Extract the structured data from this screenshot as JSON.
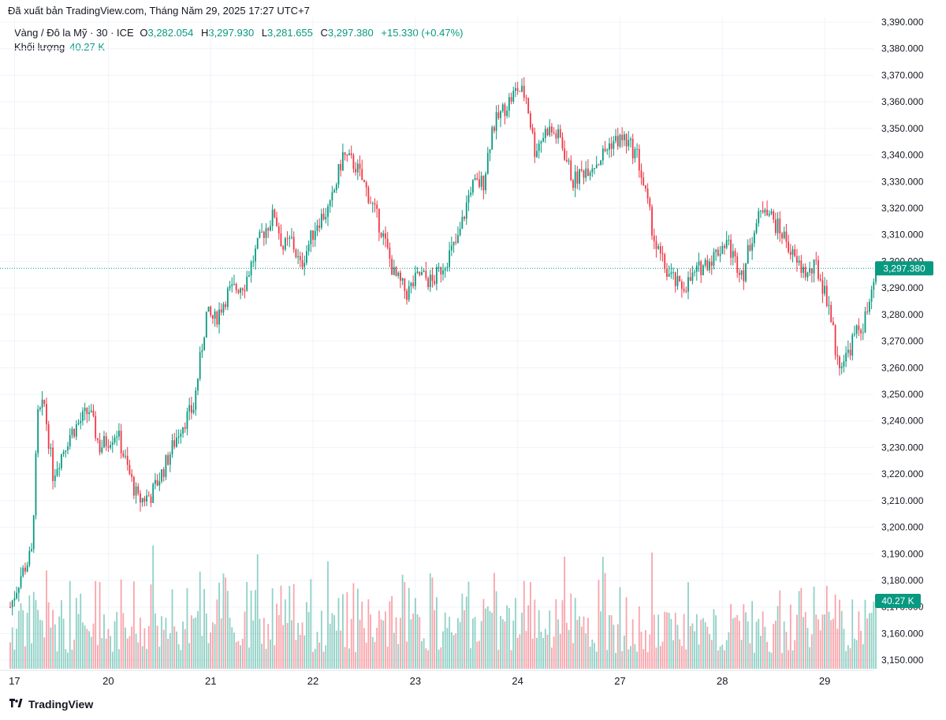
{
  "header": {
    "published": "Đã xuất bản TradingView.com, Tháng Năm 29, 2025 17:27 UTC+7"
  },
  "legend": {
    "symbol": "Vàng / Đô la Mỹ · 30 · ICE",
    "o_label": "O",
    "o_value": "3,282.054",
    "h_label": "H",
    "h_value": "3,297.930",
    "l_label": "L",
    "l_value": "3,281.655",
    "c_label": "C",
    "c_value": "3,297.380",
    "change": "+15.330 (+0.47%)",
    "volume_label": "Khối lượng",
    "volume_value": "40.27 K"
  },
  "footer": {
    "brand": "TradingView"
  },
  "colors": {
    "up": "#089981",
    "down": "#f23645",
    "grid": "#f0f3fa",
    "text": "#131722"
  },
  "chart_data": {
    "type": "candlestick",
    "y_axis": {
      "range": [
        3145,
        3390
      ],
      "ticks": [
        3150,
        3160,
        3170,
        3180,
        3190,
        3200,
        3210,
        3220,
        3230,
        3240,
        3250,
        3260,
        3270,
        3280,
        3290,
        3300,
        3310,
        3320,
        3330,
        3340,
        3350,
        3360,
        3370,
        3380,
        3390
      ],
      "tick_labels": [
        "3,150.000",
        "3,160.000",
        "3,170.000",
        "3,180.000",
        "3,190.000",
        "3,200.000",
        "3,210.000",
        "3,220.000",
        "3,230.000",
        "3,240.000",
        "3,250.000",
        "3,260.000",
        "3,270.000",
        "3,280.000",
        "3,290.000",
        "3,300.000",
        "3,310.000",
        "3,320.000",
        "3,330.000",
        "3,340.000",
        "3,350.000",
        "3,360.000",
        "3,370.000",
        "3,380.000",
        "3,390.000"
      ]
    },
    "x_axis": {
      "labels": [
        {
          "label": "17",
          "bar": 2
        },
        {
          "label": "20",
          "bar": 46
        },
        {
          "label": "21",
          "bar": 94
        },
        {
          "label": "22",
          "bar": 142
        },
        {
          "label": "23",
          "bar": 190
        },
        {
          "label": "24",
          "bar": 238
        },
        {
          "label": "27",
          "bar": 286
        },
        {
          "label": "28",
          "bar": 334
        },
        {
          "label": "29",
          "bar": 382
        }
      ],
      "bar_count": 400
    },
    "last_price": 3297.38,
    "last_price_label": "3,297.380",
    "last_volume_label": "40.27 K",
    "price_path": [
      [
        0,
        3170
      ],
      [
        5,
        3182
      ],
      [
        10,
        3190
      ],
      [
        13,
        3242
      ],
      [
        16,
        3246
      ],
      [
        20,
        3220
      ],
      [
        28,
        3235
      ],
      [
        37,
        3244
      ],
      [
        42,
        3230
      ],
      [
        50,
        3236
      ],
      [
        55,
        3222
      ],
      [
        60,
        3210
      ],
      [
        66,
        3212
      ],
      [
        72,
        3222
      ],
      [
        80,
        3238
      ],
      [
        86,
        3245
      ],
      [
        92,
        3280
      ],
      [
        96,
        3278
      ],
      [
        102,
        3288
      ],
      [
        110,
        3292
      ],
      [
        118,
        3310
      ],
      [
        124,
        3318
      ],
      [
        128,
        3305
      ],
      [
        132,
        3308
      ],
      [
        136,
        3298
      ],
      [
        144,
        3315
      ],
      [
        150,
        3320
      ],
      [
        156,
        3340
      ],
      [
        162,
        3336
      ],
      [
        168,
        3325
      ],
      [
        174,
        3312
      ],
      [
        180,
        3295
      ],
      [
        186,
        3288
      ],
      [
        192,
        3295
      ],
      [
        198,
        3292
      ],
      [
        204,
        3300
      ],
      [
        210,
        3308
      ],
      [
        216,
        3328
      ],
      [
        222,
        3330
      ],
      [
        226,
        3350
      ],
      [
        232,
        3358
      ],
      [
        238,
        3365
      ],
      [
        242,
        3362
      ],
      [
        246,
        3342
      ],
      [
        252,
        3350
      ],
      [
        258,
        3346
      ],
      [
        264,
        3330
      ],
      [
        270,
        3335
      ],
      [
        276,
        3338
      ],
      [
        282,
        3345
      ],
      [
        288,
        3346
      ],
      [
        294,
        3340
      ],
      [
        298,
        3325
      ],
      [
        303,
        3305
      ],
      [
        308,
        3296
      ],
      [
        314,
        3290
      ],
      [
        318,
        3292
      ],
      [
        324,
        3298
      ],
      [
        330,
        3302
      ],
      [
        336,
        3308
      ],
      [
        340,
        3300
      ],
      [
        344,
        3296
      ],
      [
        348,
        3310
      ],
      [
        354,
        3322
      ],
      [
        358,
        3315
      ],
      [
        364,
        3308
      ],
      [
        368,
        3300
      ],
      [
        374,
        3295
      ],
      [
        378,
        3298
      ],
      [
        384,
        3284
      ],
      [
        388,
        3262
      ],
      [
        392,
        3264
      ],
      [
        396,
        3272
      ],
      [
        400,
        3276
      ],
      [
        404,
        3286
      ],
      [
        406,
        3297.38
      ]
    ],
    "volume_scale": [
      0,
      60
    ]
  }
}
